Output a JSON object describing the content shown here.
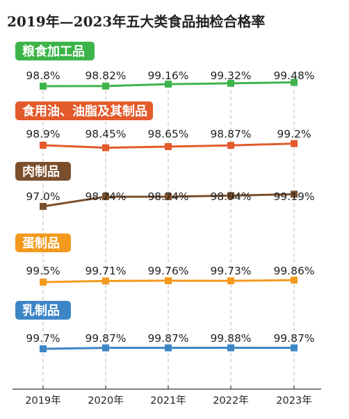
{
  "chart_data": {
    "type": "line",
    "title": "2019年—2023年五大类食品抽检合格率",
    "categories": [
      "2019年",
      "2020年",
      "2021年",
      "2022年",
      "2023年"
    ],
    "grid": "vertical dashed lines",
    "series": [
      {
        "name": "粮食加工品",
        "color": "#3db44a",
        "values": [
          98.8,
          98.82,
          99.16,
          99.32,
          99.48
        ],
        "labels": [
          "98.8%",
          "98.82%",
          "99.16%",
          "99.32%",
          "99.48%"
        ]
      },
      {
        "name": "食用油、油脂及其制品",
        "color": "#e35a2b",
        "values": [
          98.9,
          98.45,
          98.65,
          98.87,
          99.2
        ],
        "labels": [
          "98.9%",
          "98.45%",
          "98.65%",
          "98.87%",
          "99.2%"
        ]
      },
      {
        "name": "肉制品",
        "color": "#7b4f2c",
        "values": [
          97.0,
          98.74,
          98.74,
          98.94,
          99.19
        ],
        "labels": [
          "97.0%",
          "98.74%",
          "98.74%",
          "98.94%",
          "99.19%"
        ]
      },
      {
        "name": "蛋制品",
        "color": "#f39a1e",
        "values": [
          99.5,
          99.71,
          99.76,
          99.73,
          99.86
        ],
        "labels": [
          "99.5%",
          "99.71%",
          "99.76%",
          "99.73%",
          "99.86%"
        ]
      },
      {
        "name": "乳制品",
        "color": "#3d86c6",
        "values": [
          99.7,
          99.87,
          99.87,
          99.88,
          99.87
        ],
        "labels": [
          "99.7%",
          "99.87%",
          "99.87%",
          "99.88%",
          "99.87%"
        ]
      }
    ]
  }
}
